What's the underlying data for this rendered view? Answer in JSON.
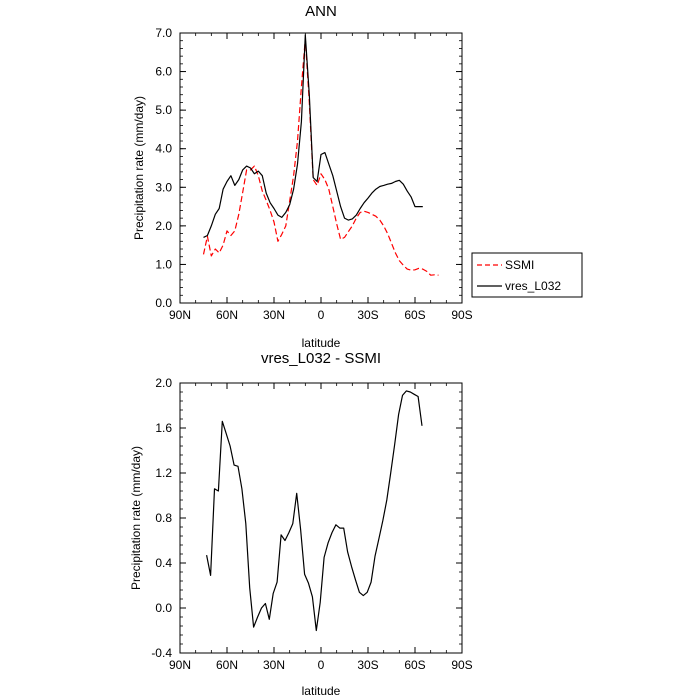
{
  "chart_data": [
    {
      "type": "line",
      "title": "ANN",
      "xlabel": "latitude",
      "ylabel": "Precipitation rate (mm/day)",
      "xlim": [
        90,
        -90
      ],
      "ylim": [
        0,
        7
      ],
      "x_ticks": [
        {
          "value": 90,
          "label": "90N"
        },
        {
          "value": 60,
          "label": "60N"
        },
        {
          "value": 30,
          "label": "30N"
        },
        {
          "value": 0,
          "label": "0"
        },
        {
          "value": -30,
          "label": "30S"
        },
        {
          "value": -60,
          "label": "60S"
        },
        {
          "value": -90,
          "label": "90S"
        }
      ],
      "y_ticks": [
        {
          "value": 0,
          "label": "0.0"
        },
        {
          "value": 1,
          "label": "1.0"
        },
        {
          "value": 2,
          "label": "2.0"
        },
        {
          "value": 3,
          "label": "3.0"
        },
        {
          "value": 4,
          "label": "4.0"
        },
        {
          "value": 5,
          "label": "5.0"
        },
        {
          "value": 6,
          "label": "6.0"
        },
        {
          "value": 7,
          "label": "7.0"
        }
      ],
      "legend": {
        "position": "right",
        "entries": [
          "SSMI",
          "vres_L032"
        ]
      },
      "series": [
        {
          "name": "SSMI",
          "color": "#ff0000",
          "dash": "dashed",
          "x": [
            75,
            72.5,
            70,
            67.5,
            65,
            62.5,
            60,
            57.5,
            55,
            52.5,
            50,
            47.5,
            45,
            42.5,
            40,
            37.5,
            35,
            32.5,
            30,
            27.5,
            25,
            22.5,
            20,
            17.5,
            15,
            12.5,
            10,
            7.5,
            5,
            2.5,
            0,
            -2.5,
            -5,
            -7.5,
            -10,
            -12.5,
            -15,
            -17.5,
            -20,
            -22.5,
            -25,
            -27.5,
            -30,
            -32.5,
            -35,
            -37.5,
            -40,
            -42.5,
            -45,
            -47.5,
            -50,
            -52.5,
            -55,
            -57.5,
            -60,
            -62.5,
            -65,
            -67.5,
            -70,
            -72.5,
            -75
          ],
          "values": [
            1.26,
            1.73,
            1.22,
            1.4,
            1.3,
            1.5,
            1.87,
            1.75,
            1.87,
            2.3,
            2.87,
            3.45,
            3.45,
            3.55,
            3.3,
            2.9,
            2.66,
            2.4,
            2.1,
            1.6,
            1.78,
            2.0,
            2.65,
            3.3,
            4.2,
            5.6,
            6.85,
            5.2,
            3.2,
            3.05,
            3.35,
            3.2,
            2.95,
            2.5,
            2.05,
            1.65,
            1.7,
            1.85,
            2.0,
            2.2,
            2.35,
            2.38,
            2.35,
            2.3,
            2.25,
            2.15,
            2.0,
            1.8,
            1.55,
            1.3,
            1.1,
            0.98,
            0.88,
            0.85,
            0.86,
            0.9,
            0.88,
            0.82,
            0.72,
            0.73,
            0.72
          ]
        },
        {
          "name": "vres_L032",
          "color": "#000000",
          "dash": "solid",
          "x": [
            75,
            72.5,
            70,
            67.5,
            65,
            62.5,
            60,
            57.5,
            55,
            52.5,
            50,
            47.5,
            45,
            42.5,
            40,
            37.5,
            35,
            32.5,
            30,
            27.5,
            25,
            22.5,
            20,
            17.5,
            15,
            12.5,
            10,
            7.5,
            5,
            2.5,
            0,
            -2.5,
            -5,
            -7.5,
            -10,
            -12.5,
            -15,
            -17.5,
            -20,
            -22.5,
            -25,
            -27.5,
            -30,
            -32.5,
            -35,
            -37.5,
            -40,
            -42.5,
            -45,
            -47.5,
            -50,
            -52.5,
            -55,
            -57.5,
            -60,
            -62.5,
            -65
          ],
          "values": [
            1.7,
            1.75,
            2.0,
            2.3,
            2.45,
            2.95,
            3.15,
            3.3,
            3.05,
            3.2,
            3.45,
            3.55,
            3.5,
            3.35,
            3.42,
            3.3,
            2.85,
            2.6,
            2.45,
            2.28,
            2.22,
            2.35,
            2.55,
            2.95,
            3.6,
            4.7,
            6.95,
            5.4,
            3.25,
            3.15,
            3.85,
            3.9,
            3.6,
            3.3,
            2.9,
            2.5,
            2.2,
            2.15,
            2.18,
            2.28,
            2.45,
            2.6,
            2.72,
            2.85,
            2.95,
            3.02,
            3.05,
            3.08,
            3.1,
            3.15,
            3.18,
            3.08,
            2.9,
            2.75,
            2.5,
            2.5,
            2.5
          ]
        }
      ]
    },
    {
      "type": "line",
      "title": "vres_L032 - SSMI",
      "xlabel": "latitude",
      "ylabel": "Precipitation rate (mm/day)",
      "xlim": [
        90,
        -90
      ],
      "ylim": [
        -0.4,
        2.0
      ],
      "x_ticks": [
        {
          "value": 90,
          "label": "90N"
        },
        {
          "value": 60,
          "label": "60N"
        },
        {
          "value": 30,
          "label": "30N"
        },
        {
          "value": 0,
          "label": "0"
        },
        {
          "value": -30,
          "label": "30S"
        },
        {
          "value": -60,
          "label": "60S"
        },
        {
          "value": -90,
          "label": "90S"
        }
      ],
      "y_ticks": [
        {
          "value": -0.4,
          "label": "-0.4"
        },
        {
          "value": 0.0,
          "label": "0.0"
        },
        {
          "value": 0.4,
          "label": "0.4"
        },
        {
          "value": 0.8,
          "label": "0.8"
        },
        {
          "value": 1.2,
          "label": "1.2"
        },
        {
          "value": 1.6,
          "label": "1.6"
        },
        {
          "value": 2.0,
          "label": "2.0"
        }
      ],
      "series": [
        {
          "name": "vres_L032 - SSMI",
          "color": "#000000",
          "dash": "solid",
          "x": [
            73,
            70.5,
            68,
            65.5,
            63,
            60.5,
            58,
            55.5,
            53,
            50.5,
            48,
            45.5,
            43,
            40.5,
            38,
            35.5,
            33,
            30.5,
            28,
            25.5,
            23,
            20.5,
            18,
            15.5,
            13,
            10.5,
            8,
            5.5,
            3,
            0.5,
            -2,
            -4.5,
            -7,
            -9.5,
            -12,
            -14.5,
            -17,
            -19.5,
            -22,
            -24.5,
            -27,
            -29.5,
            -32,
            -34.5,
            -37,
            -39.5,
            -42,
            -44.5,
            -47,
            -49.5,
            -52,
            -54.5,
            -57,
            -59.5,
            -62,
            -64.5
          ],
          "values": [
            0.47,
            0.29,
            1.06,
            1.04,
            1.66,
            1.55,
            1.44,
            1.27,
            1.26,
            1.06,
            0.75,
            0.18,
            -0.17,
            -0.08,
            0.0,
            0.04,
            -0.1,
            0.13,
            0.23,
            0.65,
            0.6,
            0.67,
            0.75,
            1.02,
            0.7,
            0.3,
            0.22,
            0.1,
            -0.2,
            0.05,
            0.45,
            0.58,
            0.67,
            0.74,
            0.71,
            0.71,
            0.5,
            0.37,
            0.25,
            0.14,
            0.11,
            0.14,
            0.23,
            0.46,
            0.62,
            0.78,
            0.96,
            1.2,
            1.45,
            1.72,
            1.89,
            1.93,
            1.92,
            1.9,
            1.88,
            1.62
          ]
        }
      ]
    }
  ]
}
